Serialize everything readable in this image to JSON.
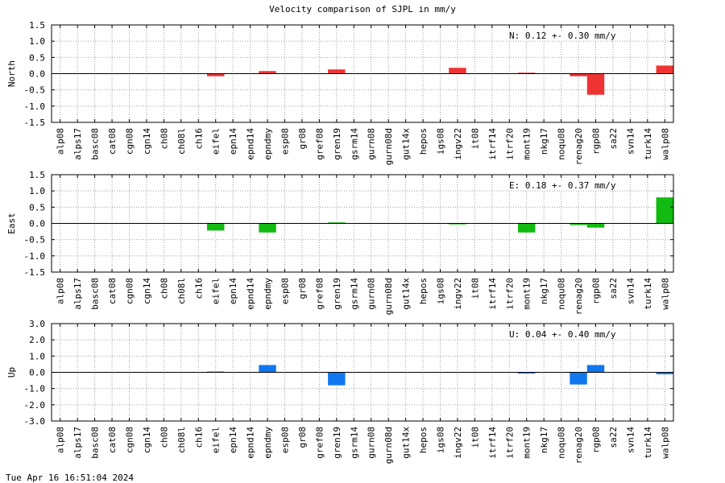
{
  "title": "Velocity comparison of SJPL in mm/y",
  "timestamp": "Tue Apr 16 16:51:04 2024",
  "chart_data": [
    {
      "type": "bar",
      "component": "North",
      "ylabel": "North",
      "ylim": [
        -1.5,
        1.5
      ],
      "yticks": [
        1.5,
        1.0,
        0.5,
        0.0,
        -0.5,
        -1.0,
        -1.5
      ],
      "ytick_labels": [
        "1.5",
        "1.0",
        "0.5",
        "0.0",
        "-0.5",
        "-1.0",
        "-1.5"
      ],
      "grid": true,
      "annotation": "N:   0.12 +-  0.30 mm/y",
      "color": "#ee3333",
      "categories": [
        "alp08",
        "alps17",
        "basc08",
        "cat08",
        "cgn08",
        "cgn14",
        "ch08",
        "ch08l",
        "ch16",
        "eifel",
        "epn14",
        "epnd14",
        "epndmy",
        "esp08",
        "gr08",
        "gref08",
        "gren19",
        "gsrm14",
        "gurn08",
        "gurn08d",
        "gut14x",
        "hepos",
        "igs08",
        "ingv22",
        "it08",
        "itrf14",
        "itrf20",
        "mont19",
        "nkg17",
        "noqu08",
        "renag20",
        "rgp08",
        "sa22",
        "svn14",
        "turk14",
        "walp08"
      ],
      "values": [
        null,
        null,
        null,
        null,
        null,
        null,
        null,
        null,
        null,
        -0.08,
        null,
        null,
        0.08,
        null,
        null,
        null,
        0.13,
        null,
        null,
        null,
        null,
        null,
        null,
        0.18,
        null,
        null,
        null,
        0.03,
        null,
        null,
        -0.08,
        -0.65,
        null,
        null,
        null,
        0.25
      ]
    },
    {
      "type": "bar",
      "component": "East",
      "ylabel": "East",
      "ylim": [
        -1.5,
        1.5
      ],
      "yticks": [
        1.5,
        1.0,
        0.5,
        0.0,
        -0.5,
        -1.0,
        -1.5
      ],
      "ytick_labels": [
        "1.5",
        "1.0",
        "0.5",
        "0.0",
        "-0.5",
        "-1.0",
        "-1.5"
      ],
      "grid": true,
      "annotation": "E:   0.18 +-  0.37 mm/y",
      "color": "#11bb11",
      "categories": [
        "alp08",
        "alps17",
        "basc08",
        "cat08",
        "cgn08",
        "cgn14",
        "ch08",
        "ch08l",
        "ch16",
        "eifel",
        "epn14",
        "epnd14",
        "epndmy",
        "esp08",
        "gr08",
        "gref08",
        "gren19",
        "gsrm14",
        "gurn08",
        "gurn08d",
        "gut14x",
        "hepos",
        "igs08",
        "ingv22",
        "it08",
        "itrf14",
        "itrf20",
        "mont19",
        "nkg17",
        "noqu08",
        "renag20",
        "rgp08",
        "sa22",
        "svn14",
        "turk14",
        "walp08"
      ],
      "values": [
        null,
        null,
        null,
        null,
        null,
        null,
        null,
        null,
        null,
        -0.22,
        null,
        null,
        -0.28,
        null,
        null,
        null,
        0.03,
        null,
        null,
        null,
        null,
        null,
        null,
        -0.03,
        null,
        null,
        null,
        -0.28,
        null,
        null,
        -0.05,
        -0.13,
        null,
        null,
        null,
        0.8
      ]
    },
    {
      "type": "bar",
      "component": "Up",
      "ylabel": "Up",
      "ylim": [
        -3.0,
        3.0
      ],
      "yticks": [
        3.0,
        2.0,
        1.0,
        0.0,
        -1.0,
        -2.0,
        -3.0
      ],
      "ytick_labels": [
        "3.0",
        "2.0",
        "1.0",
        "0.0",
        "-1.0",
        "-2.0",
        "-3.0"
      ],
      "grid": true,
      "annotation": "U:   0.04 +-  0.40 mm/y",
      "color": "#1177ee",
      "categories": [
        "alp08",
        "alps17",
        "basc08",
        "cat08",
        "cgn08",
        "cgn14",
        "ch08",
        "ch08l",
        "ch16",
        "eifel",
        "epn14",
        "epnd14",
        "epndmy",
        "esp08",
        "gr08",
        "gref08",
        "gren19",
        "gsrm14",
        "gurn08",
        "gurn08d",
        "gut14x",
        "hepos",
        "igs08",
        "ingv22",
        "it08",
        "itrf14",
        "itrf20",
        "mont19",
        "nkg17",
        "noqu08",
        "renag20",
        "rgp08",
        "sa22",
        "svn14",
        "turk14",
        "walp08"
      ],
      "values": [
        null,
        null,
        null,
        null,
        null,
        null,
        null,
        null,
        null,
        0.05,
        null,
        null,
        0.45,
        null,
        null,
        null,
        -0.8,
        null,
        null,
        null,
        null,
        null,
        null,
        null,
        null,
        null,
        null,
        -0.08,
        null,
        null,
        -0.75,
        0.45,
        null,
        null,
        null,
        -0.12
      ]
    }
  ]
}
